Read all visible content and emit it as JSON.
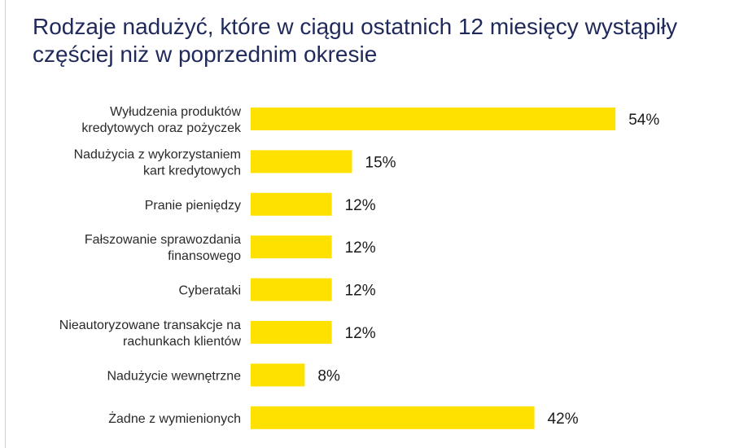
{
  "title_lines": [
    "Rodzaje nadużyć, które w ciągu ostatnich 12 miesięcy wystąpiły",
    "częściej niż w poprzednim okresie"
  ],
  "colors": {
    "bar": "#ffe100",
    "title": "#1f2a5a"
  },
  "chart_data": {
    "type": "bar",
    "orientation": "horizontal",
    "title": "Rodzaje nadużyć, które w ciągu ostatnich 12 miesięcy wystąpiły częściej niż w poprzednim okresie",
    "categories": [
      [
        "Wyłudzenia produktów",
        "kredytowych oraz pożyczek"
      ],
      [
        "Nadużycia z wykorzystaniem",
        "kart kredytowych"
      ],
      [
        "Pranie pieniędzy"
      ],
      [
        "Fałszowanie sprawozdania",
        "finansowego"
      ],
      [
        "Cyberataki"
      ],
      [
        "Nieautoryzowane transakcje na",
        "rachunkach klientów"
      ],
      [
        "Nadużycie wewnętrzne"
      ],
      [
        "Żadne z wymienionych"
      ]
    ],
    "values": [
      54,
      15,
      12,
      12,
      12,
      12,
      8,
      42
    ],
    "value_labels": [
      "54%",
      "15%",
      "12%",
      "12%",
      "12%",
      "12%",
      "8%",
      "42%"
    ],
    "xlabel": "",
    "ylabel": "",
    "grid": false,
    "legend": "none"
  }
}
